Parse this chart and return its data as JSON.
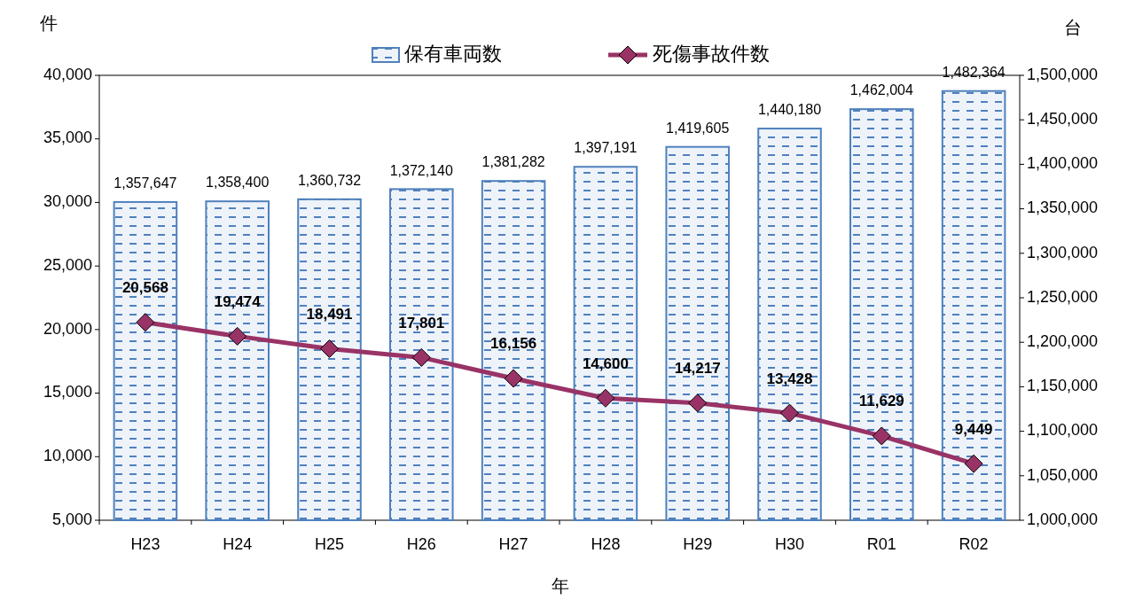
{
  "chart_data": {
    "type": "bar",
    "ylabel": "件",
    "y2label": "台",
    "xlabel": "年",
    "categories": [
      "H23",
      "H24",
      "H25",
      "H26",
      "H27",
      "H28",
      "H29",
      "H30",
      "R01",
      "R02"
    ],
    "series": [
      {
        "name": "保有車両数",
        "axis": "y2",
        "color": "#4f81bd",
        "values": [
          1357647,
          1358400,
          1360732,
          1372140,
          1381282,
          1397191,
          1419605,
          1440180,
          1462004,
          1482364
        ],
        "value_labels": [
          "1,357,647",
          "1,358,400",
          "1,360,732",
          "1,372,140",
          "1,381,282",
          "1,397,191",
          "1,419,605",
          "1,440,180",
          "1,462,004",
          "1,482,364"
        ]
      },
      {
        "name": "死傷事故件数",
        "type": "line",
        "color": "#993366",
        "marker": "diamond",
        "values": [
          20568,
          19474,
          18491,
          17801,
          16156,
          14600,
          14217,
          13428,
          11629,
          9449
        ],
        "value_labels": [
          "20,568",
          "19,474",
          "18,491",
          "17,801",
          "16,156",
          "14,600",
          "14,217",
          "13,428",
          "11,629",
          "9,449"
        ]
      }
    ],
    "ylim": [
      5000,
      40000
    ],
    "yticks": [
      {
        "value": 5000,
        "label": "5,000"
      },
      {
        "value": 10000,
        "label": "10,000"
      },
      {
        "value": 15000,
        "label": "15,000"
      },
      {
        "value": 20000,
        "label": "20,000"
      },
      {
        "value": 25000,
        "label": "25,000"
      },
      {
        "value": 30000,
        "label": "30,000"
      },
      {
        "value": 35000,
        "label": "35,000"
      },
      {
        "value": 40000,
        "label": "40,000"
      }
    ],
    "y2lim": [
      1000000,
      1500000
    ],
    "y2ticks": [
      {
        "value": 1000000,
        "label": "1,000,000"
      },
      {
        "value": 1050000,
        "label": "1,050,000"
      },
      {
        "value": 1100000,
        "label": "1,100,000"
      },
      {
        "value": 1150000,
        "label": "1,150,000"
      },
      {
        "value": 1200000,
        "label": "1,200,000"
      },
      {
        "value": 1250000,
        "label": "1,250,000"
      },
      {
        "value": 1300000,
        "label": "1,300,000"
      },
      {
        "value": 1350000,
        "label": "1,350,000"
      },
      {
        "value": 1400000,
        "label": "1,400,000"
      },
      {
        "value": 1450000,
        "label": "1,450,000"
      },
      {
        "value": 1500000,
        "label": "1,500,000"
      }
    ],
    "legend": "top",
    "grid": false
  }
}
